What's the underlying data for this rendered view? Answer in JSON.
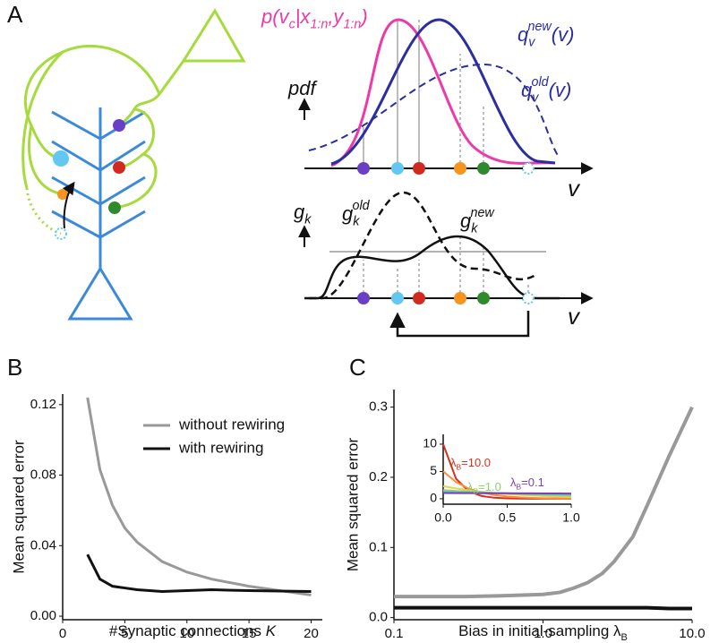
{
  "panel_labels": [
    "A",
    "B",
    "C"
  ],
  "panel_a": {
    "p_label": [
      "p(v",
      "c",
      "|x",
      "1:n",
      ",y",
      "1:n",
      ")"
    ],
    "q_new": [
      "q",
      "v",
      "new",
      "(v)"
    ],
    "q_old": [
      "q",
      "v",
      "old",
      "(v)"
    ],
    "pdf": "pdf",
    "v_top": "v",
    "g_k": [
      "g",
      "k"
    ],
    "g_old": [
      "g",
      "k",
      "old"
    ],
    "g_new": [
      "g",
      "k",
      "new"
    ],
    "v_bottom": "v"
  },
  "chart_data": [
    {
      "type": "line",
      "ylabel": "Mean squared error",
      "xlabel": [
        "#Synaptic connections ",
        "K"
      ],
      "x": [
        2,
        3,
        4,
        5,
        6,
        8,
        10,
        12,
        15,
        20
      ],
      "series": [
        {
          "name": "without rewiring",
          "color": "#999999",
          "values": [
            0.124,
            0.083,
            0.063,
            0.05,
            0.042,
            0.031,
            0.025,
            0.021,
            0.017,
            0.012
          ]
        },
        {
          "name": "with rewiring",
          "color": "#111111",
          "values": [
            0.035,
            0.021,
            0.017,
            0.016,
            0.015,
            0.014,
            0.0145,
            0.015,
            0.0145,
            0.014
          ]
        }
      ],
      "xlim": [
        0,
        20.9
      ],
      "ylim": [
        -0.002,
        0.126
      ],
      "xticks": [
        0,
        5,
        10,
        15,
        20
      ],
      "yticks": [
        {
          "value": 0,
          "label": "0.00"
        },
        0.04,
        0.08,
        0.12
      ],
      "legend": "upper right"
    },
    {
      "type": "line",
      "xscale": "log",
      "ylabel": "Mean squared error",
      "xlabel": [
        "Bias in initial-sampling λ",
        "B"
      ],
      "x": [
        0.1,
        0.15,
        0.2,
        0.3,
        0.5,
        0.7,
        1,
        1.3,
        1.6,
        2,
        2.5,
        3,
        4,
        5,
        7,
        10
      ],
      "series": [
        {
          "color": "#999999",
          "values": [
            0.03,
            0.03,
            0.03,
            0.03,
            0.031,
            0.032,
            0.033,
            0.036,
            0.042,
            0.05,
            0.063,
            0.08,
            0.115,
            0.16,
            0.23,
            0.3
          ]
        },
        {
          "color": "#111111",
          "values": [
            0.014,
            0.014,
            0.014,
            0.014,
            0.014,
            0.014,
            0.014,
            0.014,
            0.014,
            0.014,
            0.014,
            0.014,
            0.014,
            0.014,
            0.013,
            0.013
          ]
        }
      ],
      "xlim": [
        0.1,
        10
      ],
      "ylim": [
        -0.003,
        0.325
      ],
      "xticks": [
        0.1,
        {
          "value": 1,
          "label": "1.0"
        },
        {
          "value": 10,
          "label": "10.0"
        }
      ],
      "yticks": [
        {
          "value": 0,
          "label": "0.0"
        },
        0.1,
        0.2,
        0.3
      ]
    },
    {
      "type": "line",
      "x": [
        0,
        0.1,
        0.2,
        0.3,
        0.4,
        0.5,
        0.6,
        0.7,
        0.8,
        0.9,
        1
      ],
      "series": [
        {
          "color": "#d7301f",
          "values": [
            10,
            3.68,
            1.35,
            0.5,
            0.18,
            0.07,
            0.02,
            0.01,
            0,
            0,
            0
          ]
        },
        {
          "color": "#fd8d3c",
          "values": [
            5.03,
            3.05,
            1.85,
            1.12,
            0.68,
            0.41,
            0.25,
            0.15,
            0.09,
            0.06,
            0.03
          ]
        },
        {
          "color": "#e6d34a",
          "values": [
            2.31,
            1.89,
            1.55,
            1.27,
            1.04,
            0.85,
            0.7,
            0.57,
            0.47,
            0.38,
            0.31
          ]
        },
        {
          "color": "#8fd16b",
          "values": [
            1.58,
            1.43,
            1.29,
            1.17,
            1.06,
            0.96,
            0.87,
            0.79,
            0.71,
            0.64,
            0.58
          ]
        },
        {
          "color": "#5bc4d9",
          "values": [
            1.27,
            1.21,
            1.15,
            1.09,
            1.04,
            0.99,
            0.94,
            0.89,
            0.85,
            0.81,
            0.77
          ]
        },
        {
          "color": "#7b3fb5",
          "values": [
            1.05,
            1.04,
            1.03,
            1.02,
            1.01,
            1.0,
            0.99,
            0.98,
            0.97,
            0.96,
            0.95
          ]
        }
      ],
      "xlim": [
        0,
        1
      ],
      "ylim": [
        -1,
        11.8
      ],
      "xticks": [
        {
          "value": 0,
          "label": "0.0"
        },
        0.5,
        {
          "value": 1,
          "label": "1.0"
        }
      ],
      "yticks": [
        0,
        5,
        10
      ],
      "annotations": [
        {
          "text": [
            "λ",
            "B",
            "=10.0"
          ],
          "color": "#d7301f"
        },
        {
          "text": [
            "λ",
            "B",
            "=1.0"
          ],
          "color": "#8fd16b"
        },
        {
          "text": [
            "λ",
            "B",
            "=0.1"
          ],
          "color": "#7b3fb5"
        }
      ]
    }
  ]
}
